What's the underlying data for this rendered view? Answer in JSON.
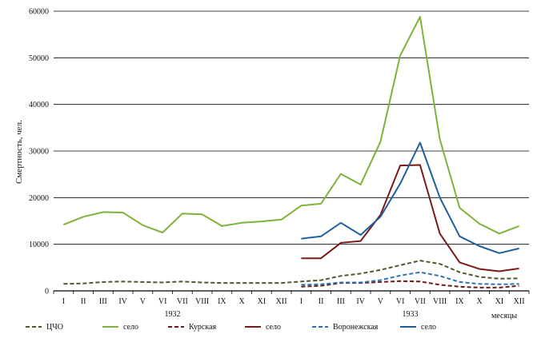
{
  "chart_data": {
    "type": "line",
    "ylabel": "Смертность, чел.",
    "xlabel": "месяцы",
    "ylim": [
      0,
      60000
    ],
    "y_ticks": [
      0,
      10000,
      20000,
      30000,
      40000,
      50000,
      60000
    ],
    "grid": true,
    "categories": [
      "I",
      "II",
      "III",
      "IV",
      "V",
      "VI",
      "VII",
      "VIII",
      "IX",
      "X",
      "XI",
      "XII",
      "I",
      "II",
      "III",
      "IV",
      "V",
      "VI",
      "VII",
      "VIII",
      "IX",
      "X",
      "XI",
      "XII"
    ],
    "year_labels": [
      {
        "label": "1932",
        "start_index": 0,
        "end_index": 11
      },
      {
        "label": "1933",
        "start_index": 12,
        "end_index": 23
      }
    ],
    "legend_position": "bottom",
    "series": [
      {
        "name": "ЦЧО",
        "style": "dashed",
        "color": "#4a5a2a",
        "values": [
          1500,
          1600,
          1900,
          2000,
          1900,
          1800,
          2000,
          1800,
          1700,
          1700,
          1700,
          1700,
          2000,
          2300,
          3200,
          3700,
          4500,
          5500,
          6500,
          5800,
          4000,
          3000,
          2600,
          2700
        ]
      },
      {
        "name": "село",
        "style": "solid",
        "color": "#7fb23a",
        "values": [
          14200,
          15900,
          16900,
          16800,
          14100,
          12500,
          16600,
          16400,
          13900,
          14600,
          14900,
          15300,
          18300,
          18700,
          25100,
          22800,
          32000,
          50500,
          58800,
          32500,
          17800,
          14400,
          12300,
          13900
        ]
      },
      {
        "name": "Курская",
        "style": "dashed",
        "color": "#6b1a1a",
        "values": [
          null,
          null,
          null,
          null,
          null,
          null,
          null,
          null,
          null,
          null,
          null,
          null,
          900,
          1100,
          1700,
          1700,
          1900,
          2100,
          2000,
          1300,
          900,
          700,
          700,
          1100
        ]
      },
      {
        "name": "село",
        "style": "solid",
        "color": "#7a1a1a",
        "values": [
          null,
          null,
          null,
          null,
          null,
          null,
          null,
          null,
          null,
          null,
          null,
          null,
          7000,
          7000,
          10300,
          10700,
          16300,
          26900,
          27000,
          12300,
          6100,
          4700,
          4200,
          4800
        ]
      },
      {
        "name": "Воронежская",
        "style": "dashed",
        "color": "#2e73b8",
        "values": [
          null,
          null,
          null,
          null,
          null,
          null,
          null,
          null,
          null,
          null,
          null,
          null,
          1300,
          1400,
          1800,
          1800,
          2300,
          3300,
          4000,
          3200,
          1900,
          1500,
          1400,
          1500
        ]
      },
      {
        "name": "село",
        "style": "solid",
        "color": "#1f5fa0",
        "values": [
          null,
          null,
          null,
          null,
          null,
          null,
          null,
          null,
          null,
          null,
          null,
          null,
          11200,
          11700,
          14600,
          12000,
          15900,
          23000,
          31800,
          20000,
          11700,
          9600,
          8100,
          9100
        ]
      }
    ]
  }
}
